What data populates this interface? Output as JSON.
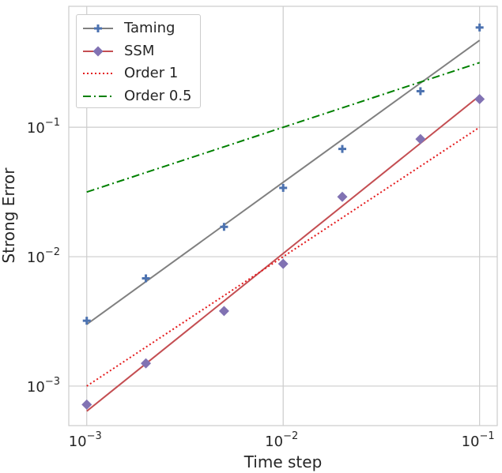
{
  "chart_data": {
    "type": "line",
    "title": "",
    "xlabel": "Time step",
    "ylabel": "Strong Error",
    "xscale": "log",
    "yscale": "log",
    "xlim": [
      0.00081,
      0.123
    ],
    "ylim": [
      0.000495,
      0.86
    ],
    "grid": true,
    "legend_position": "top-left",
    "x_ticks": [
      {
        "value": 0.001,
        "base": "10",
        "exp": "−3"
      },
      {
        "value": 0.01,
        "base": "10",
        "exp": "−2"
      },
      {
        "value": 0.1,
        "base": "10",
        "exp": "−1"
      }
    ],
    "y_ticks": [
      {
        "value": 0.001,
        "base": "10",
        "exp": "−3"
      },
      {
        "value": 0.01,
        "base": "10",
        "exp": "−2"
      },
      {
        "value": 0.1,
        "base": "10",
        "exp": "−1"
      }
    ],
    "series": [
      {
        "name": "Taming",
        "kind": "markers",
        "marker": "plus",
        "color": "#4c72b0",
        "x": [
          0.001,
          0.002,
          0.005,
          0.01,
          0.02,
          0.05,
          0.1
        ],
        "y": [
          0.0032,
          0.0068,
          0.017,
          0.034,
          0.068,
          0.19,
          0.59
        ]
      },
      {
        "name": "Taming",
        "kind": "line",
        "color": "#808080",
        "dash": "",
        "x": [
          0.001,
          0.1
        ],
        "y": [
          0.003,
          0.47
        ]
      },
      {
        "name": "SSM",
        "kind": "markers",
        "marker": "diamond",
        "color": "#8172b3",
        "x": [
          0.001,
          0.002,
          0.005,
          0.01,
          0.02,
          0.05,
          0.1
        ],
        "y": [
          0.00072,
          0.0015,
          0.0038,
          0.0088,
          0.029,
          0.081,
          0.165
        ]
      },
      {
        "name": "SSM",
        "kind": "line",
        "color": "#c44e52",
        "dash": "",
        "x": [
          0.001,
          0.1
        ],
        "y": [
          0.00064,
          0.175
        ]
      },
      {
        "name": "Order 1",
        "kind": "line",
        "color": "#e41a1c",
        "dash": "2,3",
        "x": [
          0.001,
          0.1
        ],
        "y": [
          0.001,
          0.1
        ]
      },
      {
        "name": "Order 0.5",
        "kind": "line",
        "color": "#008000",
        "dash": "10,4,2,4",
        "x": [
          0.001,
          0.1
        ],
        "y": [
          0.0316,
          0.316
        ]
      }
    ]
  },
  "legend": [
    {
      "label": "Taming",
      "color": "#808080",
      "marker": "plus",
      "marker_color": "#4c72b0",
      "dash": ""
    },
    {
      "label": "SSM",
      "color": "#c44e52",
      "marker": "diamond",
      "marker_color": "#8172b3",
      "dash": ""
    },
    {
      "label": "Order 1",
      "color": "#e41a1c",
      "marker": "",
      "marker_color": "",
      "dash": "2,3"
    },
    {
      "label": "Order 0.5",
      "color": "#008000",
      "marker": "",
      "marker_color": "",
      "dash": "10,4,2,4"
    }
  ]
}
